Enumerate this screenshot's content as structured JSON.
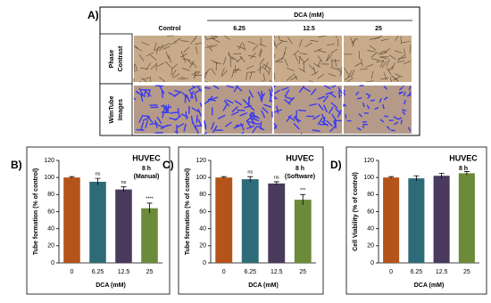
{
  "panel_a": {
    "label": "A)",
    "columns": [
      "Control",
      "6.25",
      "12.5",
      "25"
    ],
    "group_label": "DCA (mM)",
    "rows": [
      [
        "Phase",
        "Contrast"
      ],
      [
        "WimTube",
        "Images"
      ]
    ]
  },
  "chart_data": [
    {
      "type": "bar",
      "panel": "B)",
      "title": "HUVEC",
      "subtitle": "8 h",
      "note": "(Manual)",
      "ylabel": "Tube formation (% of control)",
      "xlabel": "DCA (mM)",
      "categories": [
        "0",
        "6.25",
        "12.5",
        "25"
      ],
      "values": [
        100,
        95,
        86,
        64
      ],
      "errors": [
        1,
        4,
        3,
        6
      ],
      "value_annotations": [
        null,
        "ns",
        "ns",
        "****"
      ],
      "colors": [
        "#b5541a",
        "#2e6b78",
        "#4a3a5e",
        "#6b8a3a"
      ],
      "ylim": [
        0,
        120
      ],
      "yticks": [
        0,
        20,
        40,
        60,
        80,
        100,
        120
      ]
    },
    {
      "type": "bar",
      "panel": "C)",
      "title": "HUVEC",
      "subtitle": "8 h",
      "note": "(Software)",
      "ylabel": "Tube formation (% of control)",
      "xlabel": "DCA (mM)",
      "categories": [
        "0",
        "6.25",
        "12.5",
        "25"
      ],
      "values": [
        100,
        98,
        93,
        74
      ],
      "errors": [
        1,
        3,
        2,
        6
      ],
      "value_annotations": [
        null,
        "ns",
        "ns",
        "***"
      ],
      "colors": [
        "#b5541a",
        "#2e6b78",
        "#4a3a5e",
        "#6b8a3a"
      ],
      "ylim": [
        0,
        120
      ],
      "yticks": [
        0,
        20,
        40,
        60,
        80,
        100,
        120
      ]
    },
    {
      "type": "bar",
      "panel": "D)",
      "title": "HUVEC",
      "subtitle": "8 h",
      "ylabel": "Cell Viability (% of control)",
      "xlabel": "DCA (mM)",
      "categories": [
        "0",
        "6.25",
        "12.5",
        "25"
      ],
      "values": [
        100,
        99,
        102,
        105
      ],
      "errors": [
        1,
        3,
        3,
        2
      ],
      "colors": [
        "#b5541a",
        "#2e6b78",
        "#4a3a5e",
        "#6b8a3a"
      ],
      "ylim": [
        0,
        120
      ],
      "yticks": [
        0,
        20,
        40,
        60,
        80,
        100,
        120
      ]
    }
  ]
}
